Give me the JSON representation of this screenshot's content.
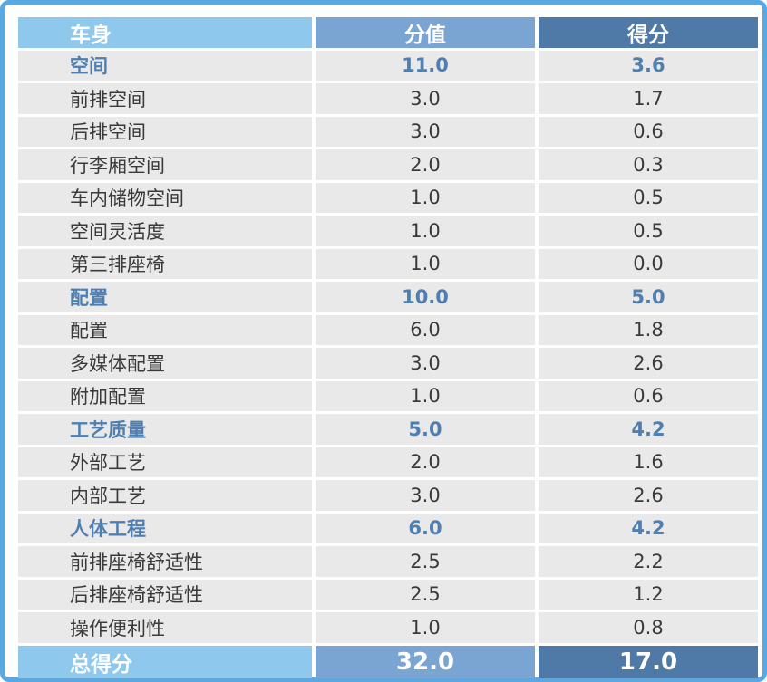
{
  "header": {
    "col1": "车身",
    "col2": "分值",
    "col3": "得分"
  },
  "rows": [
    {
      "type": "section",
      "name": "空间",
      "value": "11.0",
      "score": "3.6"
    },
    {
      "type": "item",
      "name": "前排空间",
      "value": "3.0",
      "score": "1.7"
    },
    {
      "type": "item",
      "name": "后排空间",
      "value": "3.0",
      "score": "0.6"
    },
    {
      "type": "item",
      "name": "行李厢空间",
      "value": "2.0",
      "score": "0.3"
    },
    {
      "type": "item",
      "name": "车内储物空间",
      "value": "1.0",
      "score": "0.5"
    },
    {
      "type": "item",
      "name": "空间灵活度",
      "value": "1.0",
      "score": "0.5"
    },
    {
      "type": "item",
      "name": "第三排座椅",
      "value": "1.0",
      "score": "0.0"
    },
    {
      "type": "section",
      "name": "配置",
      "value": "10.0",
      "score": "5.0"
    },
    {
      "type": "item",
      "name": "配置",
      "value": "6.0",
      "score": "1.8"
    },
    {
      "type": "item",
      "name": "多媒体配置",
      "value": "3.0",
      "score": "2.6"
    },
    {
      "type": "item",
      "name": "附加配置",
      "value": "1.0",
      "score": "0.6"
    },
    {
      "type": "section",
      "name": "工艺质量",
      "value": "5.0",
      "score": "4.2"
    },
    {
      "type": "item",
      "name": "外部工艺",
      "value": "2.0",
      "score": "1.6"
    },
    {
      "type": "item",
      "name": "内部工艺",
      "value": "3.0",
      "score": "2.6"
    },
    {
      "type": "section",
      "name": "人体工程",
      "value": "6.0",
      "score": "4.2"
    },
    {
      "type": "item",
      "name": "前排座椅舒适性",
      "value": "2.5",
      "score": "2.2"
    },
    {
      "type": "item",
      "name": "后排座椅舒适性",
      "value": "2.5",
      "score": "1.2"
    },
    {
      "type": "item",
      "name": "操作便利性",
      "value": "1.0",
      "score": "0.8"
    }
  ],
  "footer": {
    "label": "总得分",
    "value": "32.0",
    "score": "17.0"
  },
  "colors": {
    "border": "#5aa8e2",
    "header_col1": "#8ec8ec",
    "header_col2": "#7aa5d3",
    "header_col3": "#4f79a6",
    "section_text": "#4f7fb0",
    "row_bg": "#e9e9ea"
  }
}
